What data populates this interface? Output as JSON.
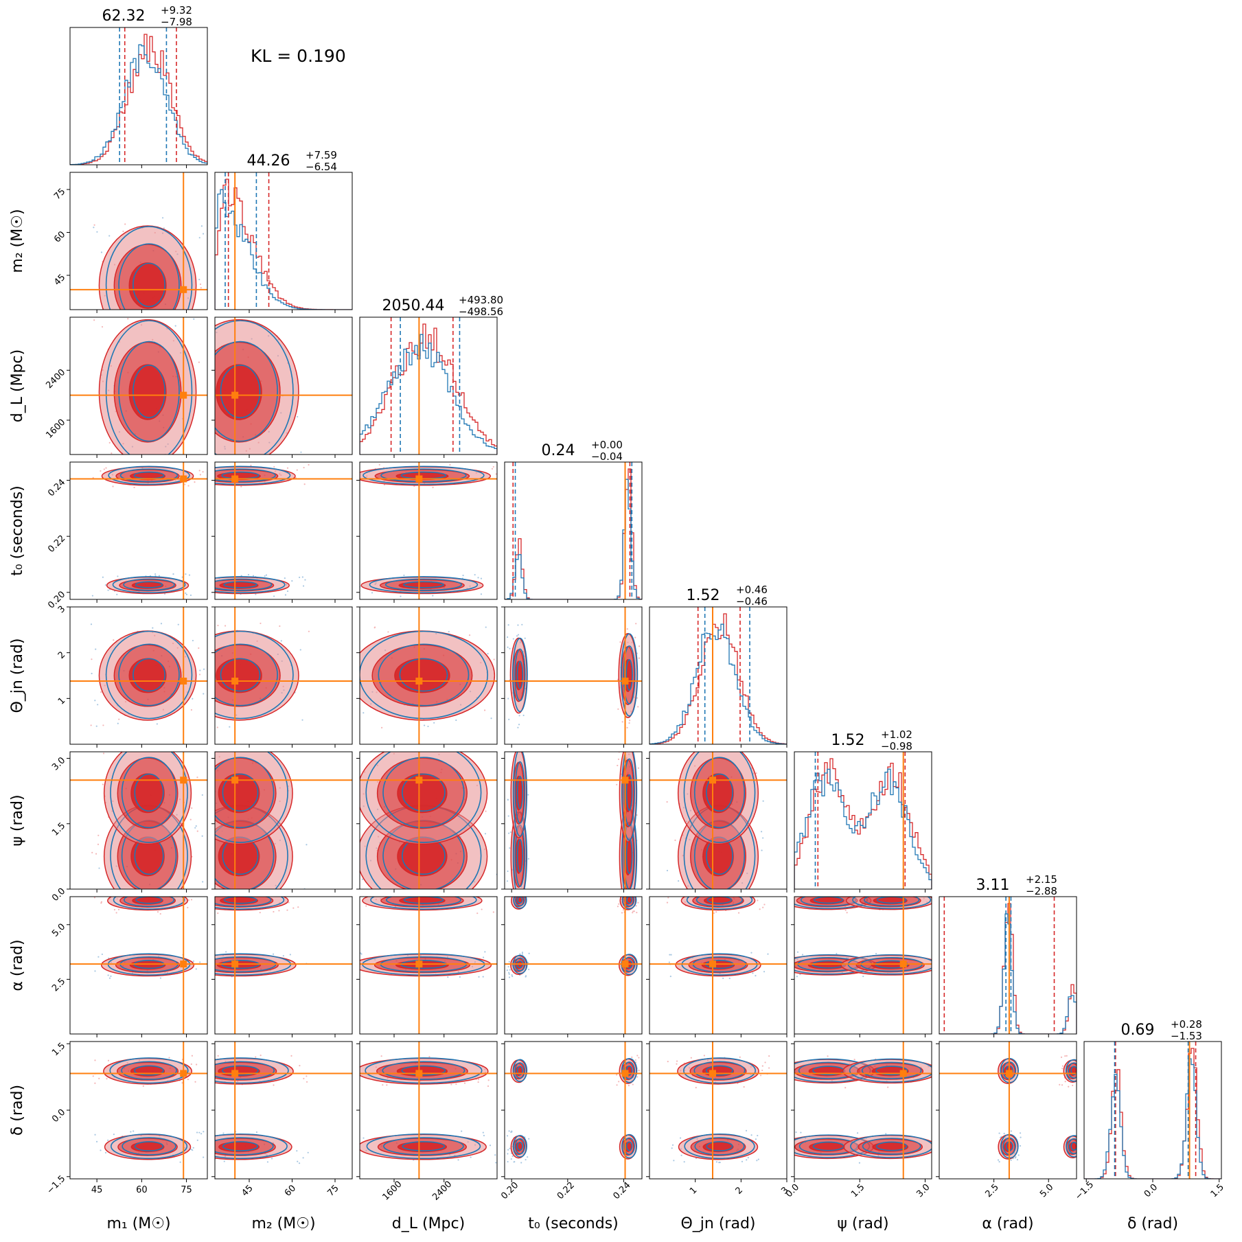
{
  "chart_data": {
    "type": "corner",
    "annotation": "KL = 0.190",
    "colors": {
      "red": "#d62728",
      "red_fill": "#e88e8f",
      "blue": "#1f77b4",
      "truth": "#ff7f0e"
    },
    "params": [
      {
        "label": "m₁ (M☉)",
        "range": [
          36,
          82
        ],
        "ticks": [
          45,
          60,
          75
        ],
        "tick_labels": [
          "45",
          "60",
          "75"
        ],
        "tick_rotation": 0,
        "truth": 74,
        "median": 62.32,
        "title_value": "62.32",
        "plus": "+9.32",
        "minus": "−7.98",
        "red_q": [
          54.34,
          71.64
        ],
        "blue_q": [
          52.6,
          68.3
        ],
        "shape": "unimodal",
        "center": 62,
        "width": 7
      },
      {
        "label": "m₂ (M☉)",
        "range": [
          33,
          81
        ],
        "ticks": [
          45,
          60,
          75
        ],
        "tick_labels": [
          "45",
          "60",
          "75"
        ],
        "tick_rotation": -45,
        "truth": 40,
        "median": 44.26,
        "title_value": "44.26",
        "plus": "+7.59",
        "minus": "−6.54",
        "red_q": [
          37.72,
          51.85
        ],
        "blue_q": [
          36.6,
          47.5
        ],
        "shape": "halfnormal",
        "center": 36,
        "width": 9
      },
      {
        "label": "d_L (Mpc)",
        "range": [
          1050,
          3250
        ],
        "ticks": [
          1600,
          2400
        ],
        "tick_labels": [
          "1600",
          "2400"
        ],
        "tick_rotation": -45,
        "truth": 2000,
        "median": 2050.44,
        "title_value": "2050.44",
        "plus": "+493.80",
        "minus": "−498.56",
        "red_q": [
          1551.88,
          2544.24
        ],
        "blue_q": [
          1700,
          2650
        ],
        "shape": "unimodal",
        "center": 2050,
        "width": 500
      },
      {
        "label": "t₀ (seconds)",
        "range": [
          0.1975,
          0.2465
        ],
        "ticks": [
          0.2,
          0.22,
          0.24
        ],
        "tick_labels": [
          "0.20",
          "0.22",
          "0.24"
        ],
        "tick_rotation": -45,
        "truth": 0.2405,
        "median": 0.24,
        "title_value": "0.24",
        "plus": "+0.00",
        "minus": "−0.04",
        "red_q": [
          0.2005,
          0.2422
        ],
        "blue_q": [
          0.2013,
          0.2429
        ],
        "shape": "bimodal",
        "modes": [
          0.2025,
          0.2415
        ],
        "weights": [
          0.3,
          0.7
        ],
        "width": 0.0012
      },
      {
        "label": "Θ_jn (rad)",
        "range": [
          0.0,
          3.0
        ],
        "ticks": [
          1,
          2,
          3
        ],
        "tick_labels": [
          "1",
          "2",
          "3"
        ],
        "tick_rotation": -45,
        "truth": 1.38,
        "median": 1.52,
        "title_value": "1.52",
        "plus": "+0.46",
        "minus": "−0.46",
        "red_q": [
          1.06,
          1.98
        ],
        "blue_q": [
          1.21,
          2.19
        ],
        "shape": "unimodal",
        "center": 1.5,
        "width": 0.42
      },
      {
        "label": "ψ (rad)",
        "range": [
          0.0,
          3.15
        ],
        "ticks": [
          0.0,
          1.5,
          3.0
        ],
        "tick_labels": [
          "0.0",
          "1.5",
          "3.0"
        ],
        "tick_rotation": -45,
        "truth": 2.5,
        "median": 1.52,
        "title_value": "1.52",
        "plus": "+1.02",
        "minus": "−0.98",
        "red_q": [
          0.54,
          2.54
        ],
        "blue_q": [
          0.48,
          2.5
        ],
        "shape": "bimodal",
        "modes": [
          0.75,
          2.2
        ],
        "weights": [
          0.5,
          0.5
        ],
        "width": 0.45
      },
      {
        "label": "α (rad)",
        "range": [
          0.0,
          6.28
        ],
        "ticks": [
          2.5,
          5.0
        ],
        "tick_labels": [
          "2.5",
          "5.0"
        ],
        "tick_rotation": -45,
        "truth": 3.2,
        "median": 3.11,
        "title_value": "3.11",
        "plus": "+2.15",
        "minus": "−2.88",
        "red_q": [
          0.23,
          5.26
        ],
        "blue_q": [
          3.05,
          3.28
        ],
        "shape": "bimodal",
        "modes": [
          3.15,
          6.1
        ],
        "weights": [
          0.75,
          0.25
        ],
        "width": 0.18
      },
      {
        "label": "δ (rad)",
        "range": [
          -1.55,
          1.55
        ],
        "ticks": [
          -1.5,
          0.0,
          1.5
        ],
        "tick_labels": [
          "−1.5",
          "0.0",
          "1.5"
        ],
        "tick_rotation": -45,
        "truth": 0.83,
        "median": 0.69,
        "title_value": "0.69",
        "plus": "+0.28",
        "minus": "−1.53",
        "red_q": [
          -0.84,
          0.97
        ],
        "blue_q": [
          -0.86,
          0.8
        ],
        "shape": "bimodal",
        "modes": [
          -0.83,
          0.88
        ],
        "weights": [
          0.45,
          0.55
        ],
        "width": 0.11
      }
    ]
  }
}
